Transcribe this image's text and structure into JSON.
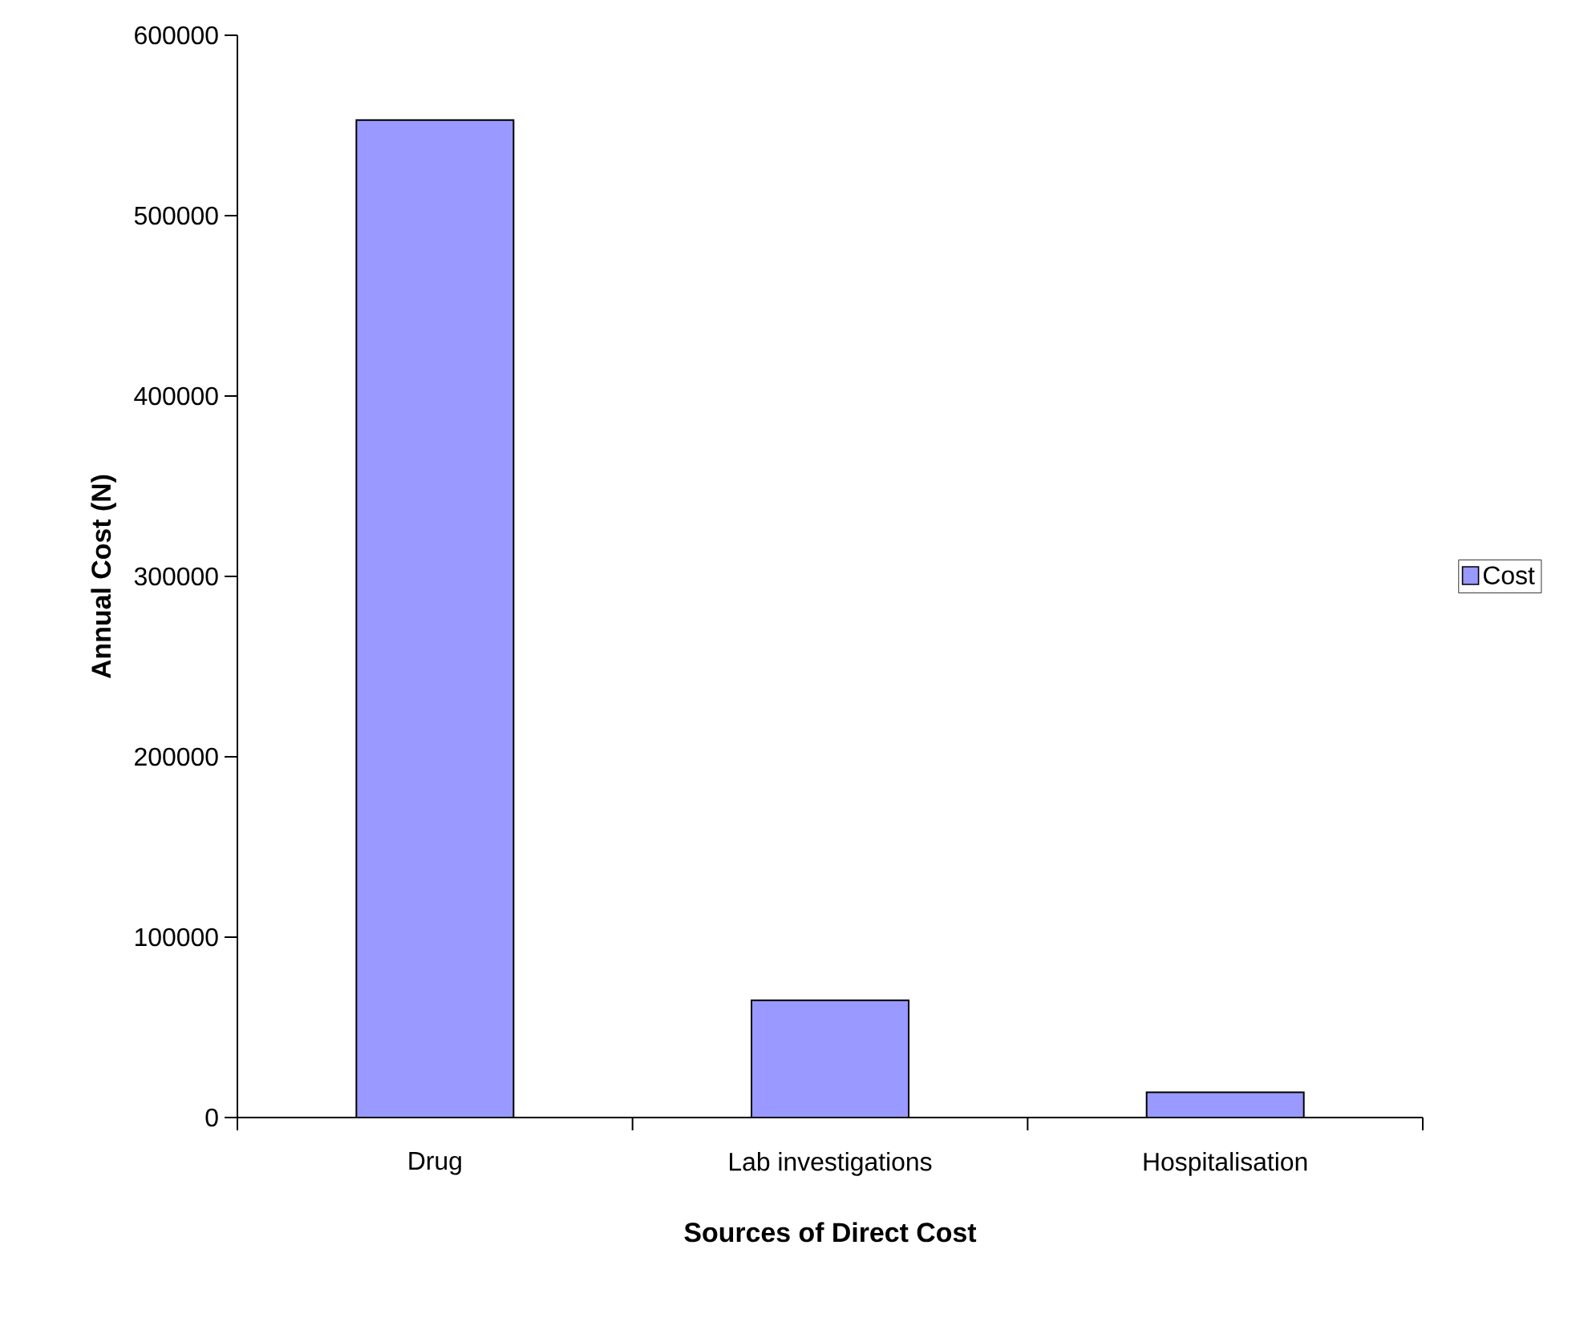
{
  "chart_data": {
    "type": "bar",
    "xlabel": "Sources of Direct Cost",
    "ylabel": "Annual Cost (N)",
    "categories": [
      "Drug",
      "Lab investigations",
      "Hospitalisation"
    ],
    "series": [
      {
        "name": "Cost",
        "color": "#9999ff",
        "values": [
          553000,
          65000,
          14000
        ]
      }
    ],
    "ylim": [
      0,
      600000
    ],
    "yticks": [
      0,
      100000,
      200000,
      300000,
      400000,
      500000,
      600000
    ],
    "legend": "right"
  }
}
